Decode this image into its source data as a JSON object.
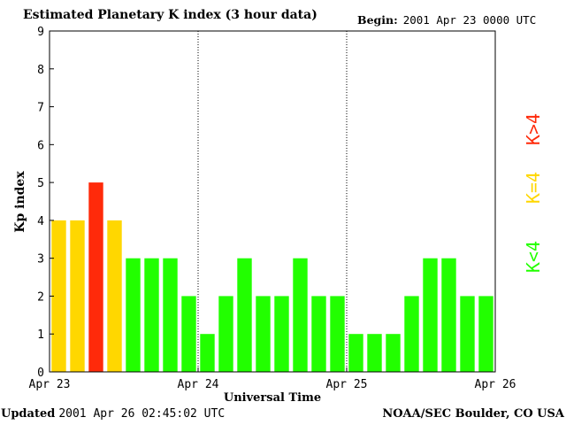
{
  "header": {
    "title": "Estimated Planetary K index (3 hour data)",
    "begin_label": "Begin:",
    "begin_value": "2001 Apr 23 0000 UTC"
  },
  "footer": {
    "updated_label": "Updated",
    "updated_value": "2001 Apr 26 02:45:02 UTC",
    "source": "NOAA/SEC Boulder, CO USA"
  },
  "legend": {
    "items": [
      {
        "label": "K<4",
        "color": "#22ff00"
      },
      {
        "label": "K=4",
        "color": "#ffd700"
      },
      {
        "label": "K>4",
        "color": "#ff2a0a"
      }
    ]
  },
  "colors": {
    "below": "#22ff00",
    "equal": "#ffd700",
    "above": "#ff2a0a"
  },
  "chart_data": {
    "type": "bar",
    "title": "Estimated Planetary K index (3 hour data)",
    "xlabel": "Universal Time",
    "ylabel": "Kp index",
    "ylim": [
      0,
      9
    ],
    "yticks": [
      0,
      1,
      2,
      3,
      4,
      5,
      6,
      7,
      8,
      9
    ],
    "xticks": [
      "Apr 23",
      "Apr 24",
      "Apr 25",
      "Apr 26"
    ],
    "interval_hours": 3,
    "values": [
      4,
      4,
      5,
      4,
      3,
      3,
      3,
      2,
      1,
      2,
      3,
      2,
      2,
      3,
      2,
      2,
      1,
      1,
      1,
      2,
      3,
      3,
      2,
      2
    ],
    "day_separators": "dotted",
    "grid": false
  }
}
